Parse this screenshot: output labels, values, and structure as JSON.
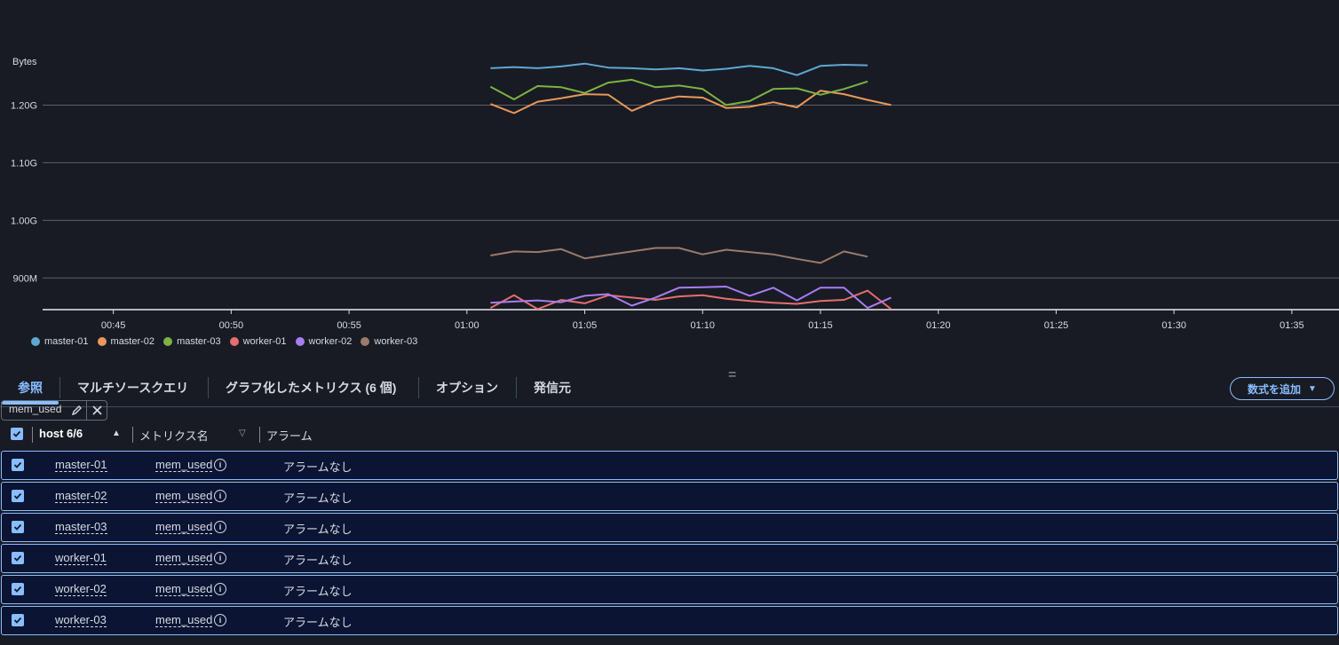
{
  "chart_data": {
    "type": "line",
    "ylabel": "Bytes",
    "yticks": [
      {
        "label": "900M",
        "value": 900
      },
      {
        "label": "1.00G",
        "value": 1000
      },
      {
        "label": "1.10G",
        "value": 1100
      },
      {
        "label": "1.20G",
        "value": 1200
      }
    ],
    "ylim": [
      845,
      1290
    ],
    "xticks": [
      "00:45",
      "00:50",
      "00:55",
      "01:00",
      "01:05",
      "01:10",
      "01:15",
      "01:20",
      "01:25",
      "01:30",
      "01:35"
    ],
    "xlim": [
      "00:42",
      "01:37"
    ],
    "x": [
      "01:01",
      "01:02",
      "01:03",
      "01:04",
      "01:05",
      "01:06",
      "01:07",
      "01:08",
      "01:09",
      "01:10",
      "01:11",
      "01:12",
      "01:13",
      "01:14",
      "01:15",
      "01:16",
      "01:17",
      "01:18"
    ],
    "series": [
      {
        "name": "master-01",
        "color": "#5fa8d3",
        "values": [
          1264,
          1266,
          1264,
          1267,
          1272,
          1265,
          1264,
          1262,
          1264,
          1260,
          1263,
          1268,
          1264,
          1252,
          1268,
          1270,
          1269,
          null
        ]
      },
      {
        "name": "master-02",
        "color": "#e8985a",
        "values": [
          1202,
          1186,
          1206,
          1212,
          1219,
          1218,
          1190,
          1207,
          1215,
          1213,
          1195,
          1197,
          1205,
          1196,
          1225,
          1219,
          1209,
          1200
        ]
      },
      {
        "name": "master-03",
        "color": "#7cb342",
        "values": [
          1232,
          1210,
          1233,
          1231,
          1221,
          1239,
          1244,
          1231,
          1234,
          1228,
          1200,
          1207,
          1228,
          1229,
          1218,
          1228,
          1241,
          null
        ]
      },
      {
        "name": "worker-01",
        "color": "#e66e6b",
        "values": [
          848,
          870,
          846,
          862,
          856,
          870,
          866,
          862,
          868,
          870,
          864,
          860,
          857,
          855,
          860,
          862,
          878,
          846
        ]
      },
      {
        "name": "worker-02",
        "color": "#a77ef0",
        "values": [
          857,
          859,
          861,
          858,
          869,
          872,
          852,
          866,
          883,
          884,
          885,
          869,
          883,
          861,
          883,
          883,
          848,
          866
        ]
      },
      {
        "name": "worker-03",
        "color": "#9c7b6a",
        "values": [
          939,
          946,
          945,
          950,
          934,
          940,
          946,
          952,
          952,
          941,
          949,
          945,
          941,
          933,
          926,
          946,
          937,
          null
        ]
      }
    ]
  },
  "tabs": {
    "browse": "参照",
    "multi_source": "マルチソースクエリ",
    "graphed": "グラフ化したメトリクス (6 個)",
    "options": "オプション",
    "source": "発信元",
    "add_formula": "数式を追加"
  },
  "token": {
    "label": "mem_used"
  },
  "table": {
    "col_host": "host 6/6",
    "col_metric": "メトリクス名",
    "col_alarm": "アラーム",
    "rows": [
      {
        "host": "master-01",
        "metric": "mem_used",
        "alarm": "アラームなし"
      },
      {
        "host": "master-02",
        "metric": "mem_used",
        "alarm": "アラームなし"
      },
      {
        "host": "master-03",
        "metric": "mem_used",
        "alarm": "アラームなし"
      },
      {
        "host": "worker-01",
        "metric": "mem_used",
        "alarm": "アラームなし"
      },
      {
        "host": "worker-02",
        "metric": "mem_used",
        "alarm": "アラームなし"
      },
      {
        "host": "worker-03",
        "metric": "mem_used",
        "alarm": "アラームなし"
      }
    ]
  },
  "icons": {
    "edit": "pencil-icon",
    "close": "close-icon",
    "sort_asc": "triangle-up-icon",
    "sort_desc": "triangle-down-icon",
    "info": "info-icon",
    "dropdown": "caret-down-icon",
    "check": "check-icon"
  }
}
